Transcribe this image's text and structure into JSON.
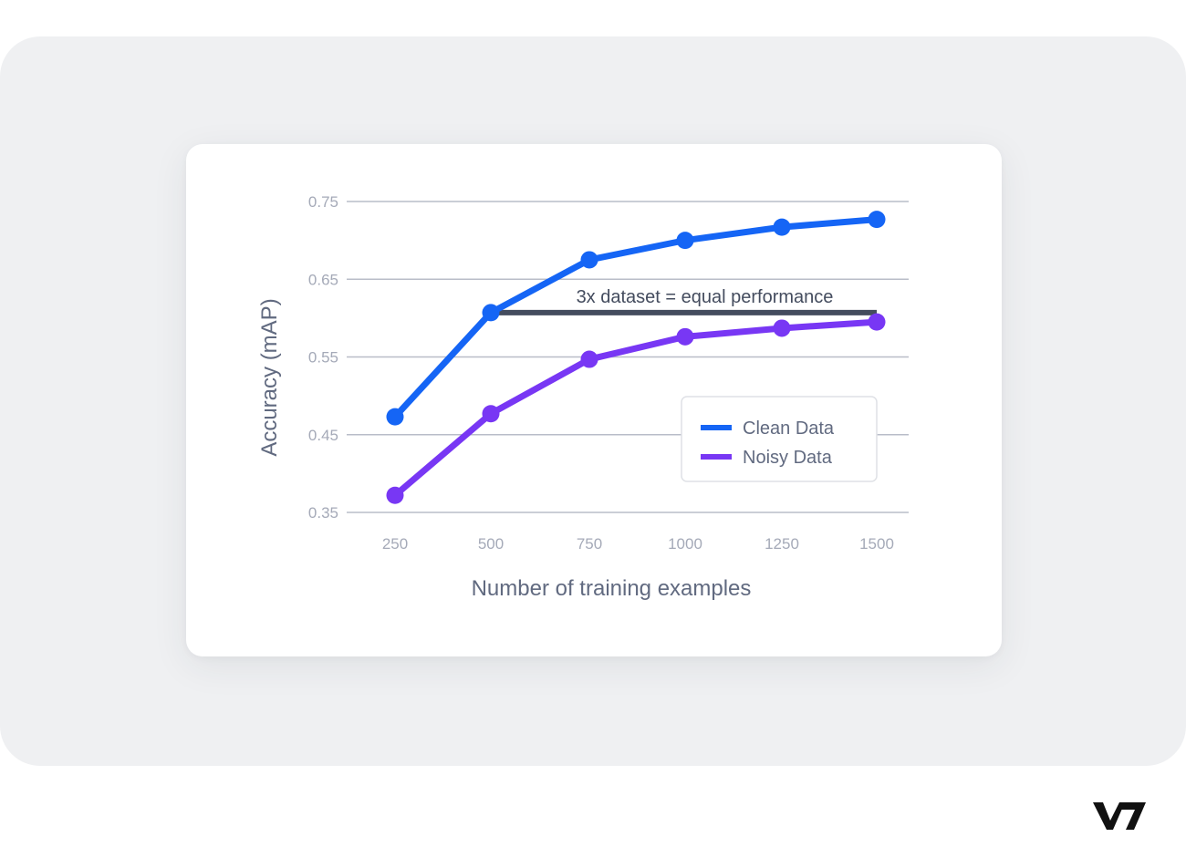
{
  "chart_data": {
    "type": "line",
    "title": "",
    "xlabel": "Number of training examples",
    "ylabel": "Accuracy (mAP)",
    "x": [
      250,
      500,
      750,
      1000,
      1250,
      1500
    ],
    "x_tick_labels": [
      "250",
      "500",
      "750",
      "1000",
      "1250",
      "1500"
    ],
    "y_ticks": [
      0.35,
      0.45,
      0.55,
      0.65,
      0.75
    ],
    "y_tick_labels": [
      "0.35",
      "0.45",
      "0.55",
      "0.65",
      "0.75"
    ],
    "ylim": [
      0.35,
      0.75
    ],
    "grid": "horizontal",
    "legend_position": "lower right (inside)",
    "series": [
      {
        "name": "Clean Data",
        "color": "#1565f5",
        "values": [
          0.473,
          0.607,
          0.675,
          0.7,
          0.717,
          0.727
        ]
      },
      {
        "name": "Noisy Data",
        "color": "#7837f4",
        "values": [
          0.372,
          0.477,
          0.547,
          0.576,
          0.587,
          0.595
        ]
      }
    ],
    "annotations": [
      {
        "text": "3x dataset = equal performance",
        "type": "horizontal-line",
        "x_from": 500,
        "x_to": 1500,
        "y": 0.607,
        "color": "#444c5e"
      }
    ]
  },
  "branding": {
    "logo_text": "V7"
  }
}
